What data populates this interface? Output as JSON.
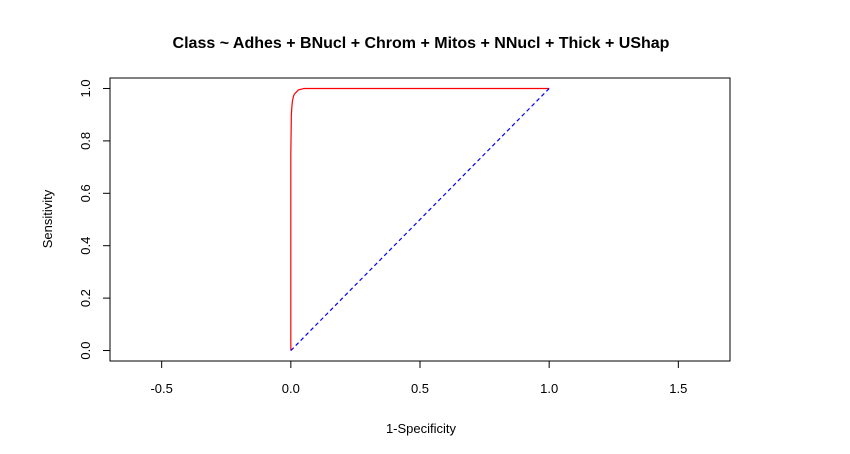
{
  "chart_data": {
    "type": "line",
    "title": "Class ~ Adhes + BNucl + Chrom + Mitos + NNucl + Thick + UShap",
    "xlabel": "1-Specificity",
    "ylabel": "Sensitivity",
    "xlim": [
      -0.7,
      1.7
    ],
    "ylim": [
      -0.04,
      1.04
    ],
    "x_ticks": [
      "-0.5",
      "0.0",
      "0.5",
      "1.0",
      "1.5"
    ],
    "y_ticks": [
      "0.0",
      "0.2",
      "0.4",
      "0.6",
      "0.8",
      "1.0"
    ],
    "grid": false,
    "series": [
      {
        "color": "#ff0000",
        "style": "solid",
        "x": [
          0.0,
          0.0,
          0.002,
          0.004,
          0.006,
          0.008,
          0.01,
          0.012,
          0.015,
          0.02,
          0.025,
          0.03,
          0.04,
          0.05,
          0.06,
          1.0
        ],
        "y": [
          0.0,
          0.75,
          0.9,
          0.93,
          0.95,
          0.96,
          0.97,
          0.975,
          0.98,
          0.985,
          0.99,
          0.995,
          0.997,
          1.0,
          1.0,
          1.0
        ]
      },
      {
        "color": "#0000ff",
        "style": "dashed",
        "x": [
          0.0,
          1.0
        ],
        "y": [
          0.0,
          1.0
        ]
      }
    ]
  }
}
